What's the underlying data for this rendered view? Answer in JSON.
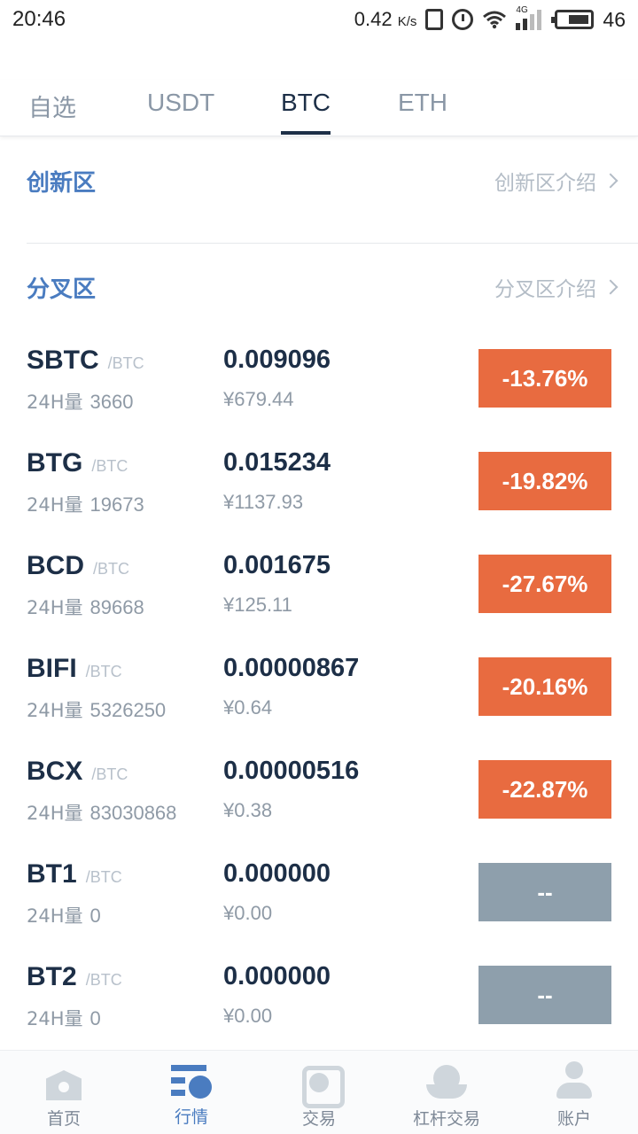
{
  "status_bar": {
    "time": "20:46",
    "speed": "0.42",
    "speed_unit": "K/s",
    "network": "4G",
    "battery": "46"
  },
  "tabs": [
    {
      "label": "自选",
      "active": false
    },
    {
      "label": "USDT",
      "active": false
    },
    {
      "label": "BTC",
      "active": true
    },
    {
      "label": "ETH",
      "active": false
    }
  ],
  "sections": {
    "innovation": {
      "title": "创新区",
      "link": "创新区介绍"
    },
    "fork": {
      "title": "分叉区",
      "link": "分叉区介绍"
    }
  },
  "volume_label": "24H量",
  "colors": {
    "down": "#e86b40",
    "neutral": "#8e9fac",
    "accent": "#4a7cc0",
    "text_dark": "#1d2f47"
  },
  "coins": [
    {
      "name": "SBTC",
      "pair": "/BTC",
      "volume": "3660",
      "price": "0.009096",
      "cny": "¥679.44",
      "change": "-13.76%",
      "state": "down"
    },
    {
      "name": "BTG",
      "pair": "/BTC",
      "volume": "19673",
      "price": "0.015234",
      "cny": "¥1137.93",
      "change": "-19.82%",
      "state": "down"
    },
    {
      "name": "BCD",
      "pair": "/BTC",
      "volume": "89668",
      "price": "0.001675",
      "cny": "¥125.11",
      "change": "-27.67%",
      "state": "down"
    },
    {
      "name": "BIFI",
      "pair": "/BTC",
      "volume": "5326250",
      "price": "0.00000867",
      "cny": "¥0.64",
      "change": "-20.16%",
      "state": "down"
    },
    {
      "name": "BCX",
      "pair": "/BTC",
      "volume": "83030868",
      "price": "0.00000516",
      "cny": "¥0.38",
      "change": "-22.87%",
      "state": "down"
    },
    {
      "name": "BT1",
      "pair": "/BTC",
      "volume": "0",
      "price": "0.000000",
      "cny": "¥0.00",
      "change": "--",
      "state": "neutral"
    },
    {
      "name": "BT2",
      "pair": "/BTC",
      "volume": "0",
      "price": "0.000000",
      "cny": "¥0.00",
      "change": "--",
      "state": "neutral"
    }
  ],
  "bottom_nav": [
    {
      "label": "首页",
      "icon": "home-icon",
      "active": false
    },
    {
      "label": "行情",
      "icon": "market-icon",
      "active": true
    },
    {
      "label": "交易",
      "icon": "trade-icon",
      "active": false
    },
    {
      "label": "杠杆交易",
      "icon": "lever-icon",
      "active": false
    },
    {
      "label": "账户",
      "icon": "account-icon",
      "active": false
    }
  ]
}
